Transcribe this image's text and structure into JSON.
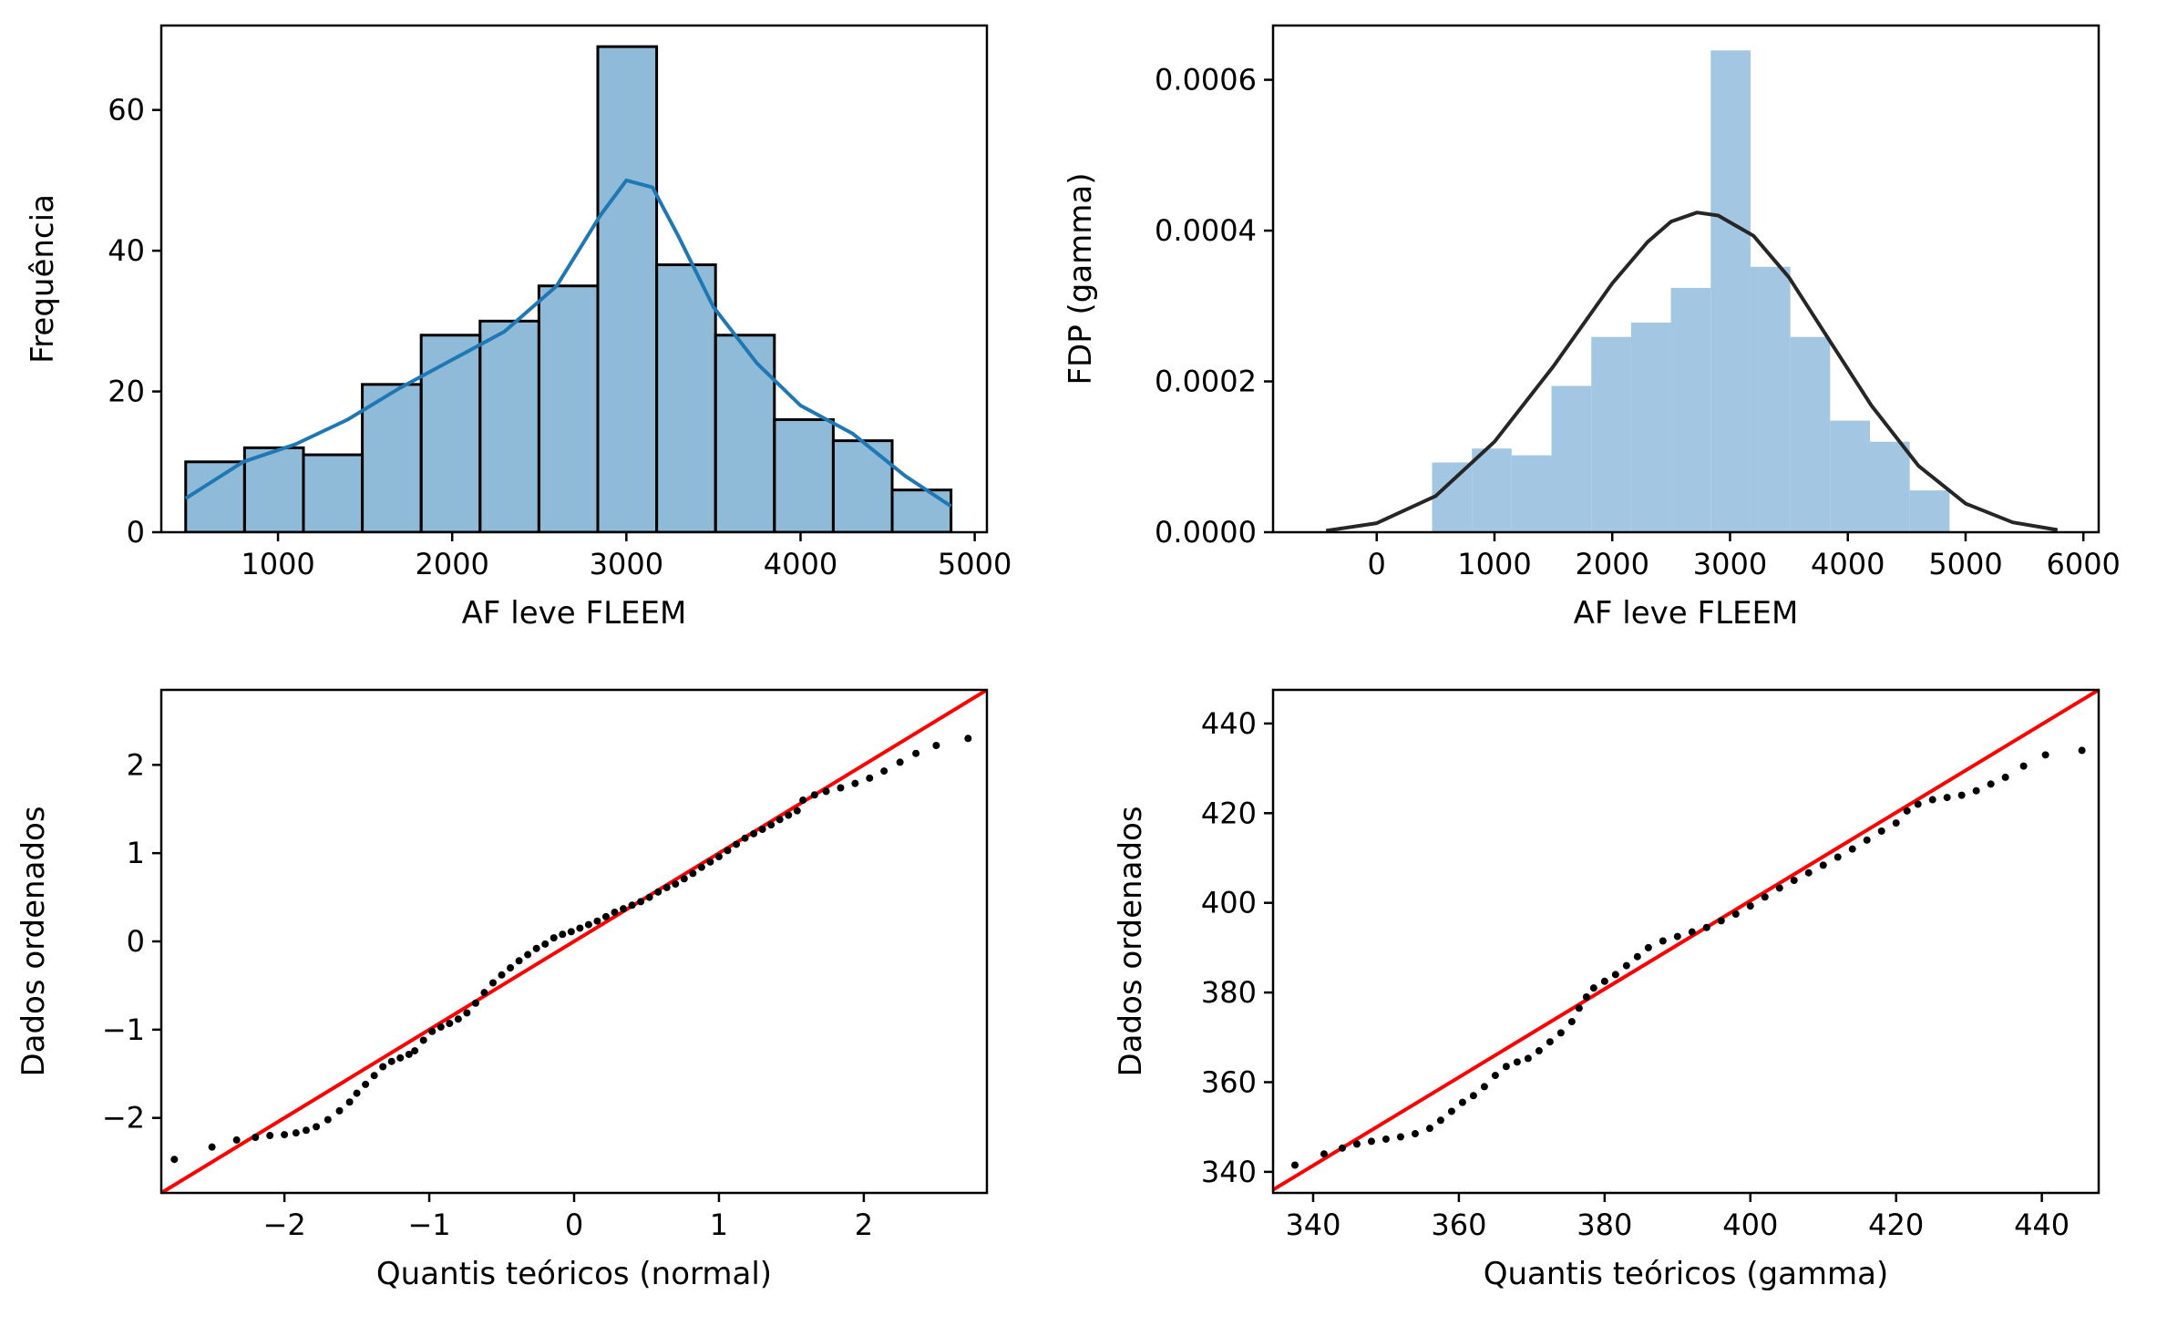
{
  "chart_data": [
    {
      "id": "hist-kde",
      "type": "bar",
      "xlabel": "AF leve FLEEM",
      "ylabel": "Frequência",
      "xlim": [
        330,
        5070
      ],
      "ylim": [
        0,
        72
      ],
      "xticks": [
        1000,
        2000,
        3000,
        4000,
        5000
      ],
      "yticks": [
        0,
        20,
        40,
        60
      ],
      "bar_color": "#1f77b4",
      "bins": [
        {
          "x0": 470,
          "x1": 808,
          "count": 10
        },
        {
          "x0": 808,
          "x1": 1146,
          "count": 12
        },
        {
          "x0": 1146,
          "x1": 1484,
          "count": 11
        },
        {
          "x0": 1484,
          "x1": 1822,
          "count": 21
        },
        {
          "x0": 1822,
          "x1": 2160,
          "count": 28
        },
        {
          "x0": 2160,
          "x1": 2498,
          "count": 30
        },
        {
          "x0": 2498,
          "x1": 2836,
          "count": 35
        },
        {
          "x0": 2836,
          "x1": 3174,
          "count": 69
        },
        {
          "x0": 3174,
          "x1": 3512,
          "count": 38
        },
        {
          "x0": 3512,
          "x1": 3850,
          "count": 28
        },
        {
          "x0": 3850,
          "x1": 4188,
          "count": 16
        },
        {
          "x0": 4188,
          "x1": 4526,
          "count": 13
        },
        {
          "x0": 4526,
          "x1": 4864,
          "count": 6
        }
      ],
      "kde": {
        "x": [
          470,
          800,
          1100,
          1400,
          1700,
          2000,
          2300,
          2600,
          2850,
          3000,
          3150,
          3300,
          3500,
          3750,
          4000,
          4300,
          4600,
          4864
        ],
        "y": [
          4.8,
          10,
          12.5,
          16,
          20.5,
          24.5,
          28.5,
          35,
          45,
          50,
          49,
          42,
          32,
          24,
          18,
          14,
          8,
          3.7
        ]
      }
    },
    {
      "id": "hist-gamma",
      "type": "bar",
      "xlabel": "AF leve FLEEM",
      "ylabel": "FDP (gamma)",
      "xlim": [
        -880,
        6130
      ],
      "ylim": [
        0,
        0.000672
      ],
      "xticks": [
        0,
        1000,
        2000,
        3000,
        4000,
        5000,
        6000
      ],
      "yticks": [
        0.0,
        0.0002,
        0.0004,
        0.0006
      ],
      "ytick_labels": [
        "0.0000",
        "0.0002",
        "0.0004",
        "0.0006"
      ],
      "bar_color": "#9ec4e0",
      "bins": [
        {
          "x0": 470,
          "x1": 808,
          "density": 9.25e-05
        },
        {
          "x0": 808,
          "x1": 1146,
          "density": 0.000111
        },
        {
          "x0": 1146,
          "x1": 1484,
          "density": 0.000102
        },
        {
          "x0": 1484,
          "x1": 1822,
          "density": 0.000194
        },
        {
          "x0": 1822,
          "x1": 2160,
          "density": 0.000259
        },
        {
          "x0": 2160,
          "x1": 2498,
          "density": 0.000278
        },
        {
          "x0": 2498,
          "x1": 2836,
          "density": 0.000324
        },
        {
          "x0": 2836,
          "x1": 3174,
          "density": 0.000639
        },
        {
          "x0": 3174,
          "x1": 3512,
          "density": 0.000352
        },
        {
          "x0": 3512,
          "x1": 3850,
          "density": 0.000259
        },
        {
          "x0": 3850,
          "x1": 4188,
          "density": 0.000148
        },
        {
          "x0": 4188,
          "x1": 4526,
          "density": 0.00012
        },
        {
          "x0": 4526,
          "x1": 4864,
          "density": 5.55e-05
        }
      ],
      "gamma_pdf": {
        "x": [
          -430,
          0,
          500,
          1000,
          1500,
          2000,
          2300,
          2500,
          2720,
          2900,
          3200,
          3500,
          3800,
          4200,
          4600,
          5000,
          5400,
          5780
        ],
        "y": [
          2e-06,
          1.2e-05,
          4.8e-05,
          0.00012,
          0.00022,
          0.00033,
          0.000385,
          0.000412,
          0.000424,
          0.00042,
          0.000393,
          0.000338,
          0.000265,
          0.000168,
          8.8e-05,
          3.8e-05,
          1.3e-05,
          3e-06
        ]
      }
    },
    {
      "id": "qq-normal",
      "type": "scatter",
      "xlabel": "Quantis teóricos (normal)",
      "ylabel": "Dados ordenados",
      "xlim": [
        -2.85,
        2.85
      ],
      "ylim": [
        -2.85,
        2.85
      ],
      "xticks": [
        -2,
        -1,
        0,
        1,
        2
      ],
      "yticks": [
        -2,
        -1,
        0,
        1,
        2
      ],
      "xtick_labels": [
        "−2",
        "−1",
        "0",
        "1",
        "2"
      ],
      "ytick_labels": [
        "−2",
        "−1",
        "0",
        "1",
        "2"
      ],
      "line_color": "#ff0000",
      "point_color": "#000000",
      "points": [
        [
          -2.76,
          -2.47
        ],
        [
          -2.5,
          -2.33
        ],
        [
          -2.33,
          -2.25
        ],
        [
          -2.2,
          -2.22
        ],
        [
          -2.1,
          -2.2
        ],
        [
          -2.0,
          -2.19
        ],
        [
          -1.92,
          -2.17
        ],
        [
          -1.85,
          -2.14
        ],
        [
          -1.78,
          -2.1
        ],
        [
          -1.7,
          -2.02
        ],
        [
          -1.62,
          -1.92
        ],
        [
          -1.55,
          -1.82
        ],
        [
          -1.5,
          -1.72
        ],
        [
          -1.44,
          -1.62
        ],
        [
          -1.38,
          -1.52
        ],
        [
          -1.32,
          -1.42
        ],
        [
          -1.26,
          -1.36
        ],
        [
          -1.2,
          -1.32
        ],
        [
          -1.14,
          -1.28
        ],
        [
          -1.1,
          -1.24
        ],
        [
          -1.04,
          -1.12
        ],
        [
          -0.98,
          -1.02
        ],
        [
          -0.92,
          -0.97
        ],
        [
          -0.86,
          -0.93
        ],
        [
          -0.8,
          -0.88
        ],
        [
          -0.74,
          -0.81
        ],
        [
          -0.68,
          -0.7
        ],
        [
          -0.62,
          -0.58
        ],
        [
          -0.56,
          -0.47
        ],
        [
          -0.5,
          -0.38
        ],
        [
          -0.44,
          -0.3
        ],
        [
          -0.38,
          -0.22
        ],
        [
          -0.32,
          -0.15
        ],
        [
          -0.26,
          -0.08
        ],
        [
          -0.2,
          -0.03
        ],
        [
          -0.14,
          0.04
        ],
        [
          -0.08,
          0.08
        ],
        [
          -0.02,
          0.11
        ],
        [
          0.04,
          0.15
        ],
        [
          0.1,
          0.19
        ],
        [
          0.16,
          0.23
        ],
        [
          0.22,
          0.28
        ],
        [
          0.28,
          0.33
        ],
        [
          0.34,
          0.37
        ],
        [
          0.4,
          0.41
        ],
        [
          0.46,
          0.45
        ],
        [
          0.52,
          0.5
        ],
        [
          0.58,
          0.56
        ],
        [
          0.64,
          0.61
        ],
        [
          0.7,
          0.65
        ],
        [
          0.76,
          0.71
        ],
        [
          0.82,
          0.77
        ],
        [
          0.88,
          0.84
        ],
        [
          0.94,
          0.9
        ],
        [
          1.0,
          0.96
        ],
        [
          1.06,
          1.03
        ],
        [
          1.12,
          1.1
        ],
        [
          1.18,
          1.17
        ],
        [
          1.24,
          1.22
        ],
        [
          1.3,
          1.27
        ],
        [
          1.36,
          1.32
        ],
        [
          1.42,
          1.38
        ],
        [
          1.48,
          1.43
        ],
        [
          1.54,
          1.48
        ],
        [
          1.58,
          1.6
        ],
        [
          1.66,
          1.66
        ],
        [
          1.74,
          1.7
        ],
        [
          1.84,
          1.74
        ],
        [
          1.94,
          1.79
        ],
        [
          2.04,
          1.85
        ],
        [
          2.14,
          1.93
        ],
        [
          2.25,
          2.03
        ],
        [
          2.36,
          2.13
        ],
        [
          2.5,
          2.22
        ],
        [
          2.72,
          2.3
        ]
      ],
      "ref_line": {
        "x": [
          -2.85,
          2.85
        ],
        "y": [
          -2.85,
          2.85
        ]
      }
    },
    {
      "id": "qq-gamma",
      "type": "scatter",
      "xlabel": "Quantis teóricos (gamma)",
      "ylabel": "Dados ordenados",
      "xlim": [
        334.5,
        447.8
      ],
      "ylim": [
        335.3,
        447.5
      ],
      "xticks": [
        340,
        360,
        380,
        400,
        420,
        440
      ],
      "yticks": [
        340,
        360,
        380,
        400,
        420,
        440
      ],
      "line_color": "#ff0000",
      "point_color": "#000000",
      "points": [
        [
          337.5,
          341.5
        ],
        [
          341.5,
          344
        ],
        [
          344,
          345.3
        ],
        [
          346,
          346.2
        ],
        [
          348,
          346.8
        ],
        [
          350,
          347.3
        ],
        [
          352,
          347.8
        ],
        [
          354,
          348.5
        ],
        [
          356,
          349.7
        ],
        [
          357.5,
          351.5
        ],
        [
          359,
          353.5
        ],
        [
          360.5,
          355.5
        ],
        [
          362,
          357
        ],
        [
          363.5,
          359
        ],
        [
          365,
          361.5
        ],
        [
          366.5,
          363.5
        ],
        [
          368,
          364.5
        ],
        [
          369.5,
          365.3
        ],
        [
          371,
          367
        ],
        [
          372.5,
          369
        ],
        [
          374,
          371
        ],
        [
          375.5,
          373.5
        ],
        [
          376.5,
          376.5
        ],
        [
          377.5,
          379
        ],
        [
          378.5,
          381
        ],
        [
          380,
          382.5
        ],
        [
          381.5,
          384
        ],
        [
          383,
          386
        ],
        [
          384.5,
          388
        ],
        [
          386,
          390
        ],
        [
          388,
          391.5
        ],
        [
          390,
          392.5
        ],
        [
          392,
          393.5
        ],
        [
          394,
          394.5
        ],
        [
          396,
          396
        ],
        [
          398,
          397.5
        ],
        [
          400,
          399.3
        ],
        [
          402,
          401.3
        ],
        [
          404,
          403.3
        ],
        [
          406,
          405
        ],
        [
          408,
          406.7
        ],
        [
          410,
          408.4
        ],
        [
          412,
          410.2
        ],
        [
          414,
          412
        ],
        [
          416,
          414
        ],
        [
          418,
          416
        ],
        [
          420,
          417.8
        ],
        [
          421.5,
          420.5
        ],
        [
          423,
          422
        ],
        [
          425,
          423
        ],
        [
          427,
          423.5
        ],
        [
          429,
          424
        ],
        [
          431,
          425
        ],
        [
          433,
          426.5
        ],
        [
          435,
          428
        ],
        [
          437.5,
          430.5
        ],
        [
          440.5,
          433
        ],
        [
          445.5,
          434
        ]
      ],
      "ref_line": {
        "x": [
          334.5,
          447.8
        ],
        "y": [
          336,
          447.5
        ]
      }
    }
  ]
}
